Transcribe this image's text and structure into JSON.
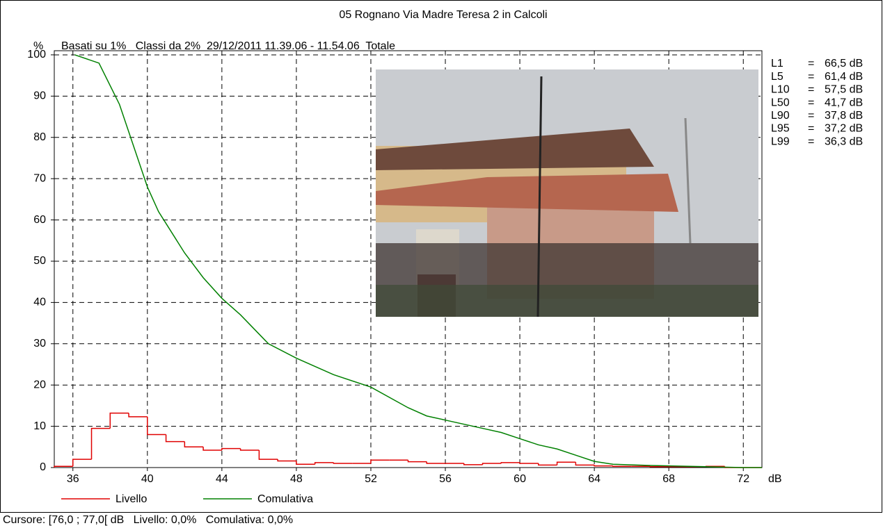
{
  "chart_data": {
    "type": "histogram",
    "title": "05 Rognano Via Madre Teresa 2 in Calcoli",
    "subtitle": "Basati su 1%   Classi da 2%  29/12/2011 11.39.06 - 11.54.06  Totale",
    "y_label": "%",
    "x_label": "dB",
    "xlim": [
      35,
      73
    ],
    "xticks": [
      36,
      40,
      44,
      48,
      52,
      56,
      60,
      64,
      68,
      72
    ],
    "ylim": [
      0,
      101
    ],
    "yticks": [
      0,
      10,
      20,
      30,
      40,
      50,
      60,
      70,
      80,
      90,
      100
    ],
    "grid": true,
    "series": [
      {
        "name": "Livello",
        "color": "#e00000",
        "type": "step",
        "bins": [
          35,
          36,
          37,
          38,
          39,
          40,
          41,
          42,
          43,
          44,
          45,
          46,
          47,
          48,
          49,
          50,
          51,
          52,
          53,
          54,
          55,
          56,
          57,
          58,
          59,
          60,
          61,
          62,
          63,
          64,
          65,
          66,
          67,
          68,
          69,
          70,
          71,
          72,
          73
        ],
        "values": [
          0.3,
          2,
          9.5,
          13.2,
          12.3,
          8,
          6.3,
          5,
          4.2,
          4.6,
          4.2,
          2,
          1.6,
          0.8,
          1.2,
          1,
          1,
          1.8,
          1.8,
          1.4,
          1,
          1,
          0.7,
          1,
          1.2,
          1,
          0.6,
          1.3,
          0.6,
          0.4,
          0.3,
          0.3,
          0.2,
          0.2,
          0.2,
          0.3,
          0,
          0
        ]
      },
      {
        "name": "Comulativa",
        "color": "#008000",
        "type": "line",
        "x": [
          36.1,
          37.4,
          38.5,
          40,
          40.6,
          42,
          43,
          44,
          45,
          46.5,
          48,
          49,
          50,
          52,
          54,
          55,
          56,
          58,
          59,
          60,
          61,
          62,
          63,
          64,
          65,
          67,
          70,
          72,
          73
        ],
        "values": [
          100,
          98,
          88,
          68,
          62,
          52,
          46,
          41,
          37,
          30,
          26.5,
          24.5,
          22.5,
          19.5,
          14.5,
          12.5,
          11.5,
          9.5,
          8.5,
          7,
          5.5,
          4.5,
          3,
          1.5,
          0.8,
          0.5,
          0.2,
          0,
          0
        ]
      }
    ],
    "stats": [
      {
        "name": "L1",
        "eq": "=",
        "value": "66,5 dB"
      },
      {
        "name": "L5",
        "eq": "=",
        "value": "61,4 dB"
      },
      {
        "name": "L10",
        "eq": "=",
        "value": "57,5 dB"
      },
      {
        "name": "L50",
        "eq": "=",
        "value": "41,7 dB"
      },
      {
        "name": "L90",
        "eq": "=",
        "value": "37,8 dB"
      },
      {
        "name": "L95",
        "eq": "=",
        "value": "37,2 dB"
      },
      {
        "name": "L99",
        "eq": "=",
        "value": "36,3 dB"
      }
    ],
    "cursor": "Cursore: [76,0 ; 77,0[ dB   Livello: 0,0%   Comulativa: 0,0%"
  }
}
